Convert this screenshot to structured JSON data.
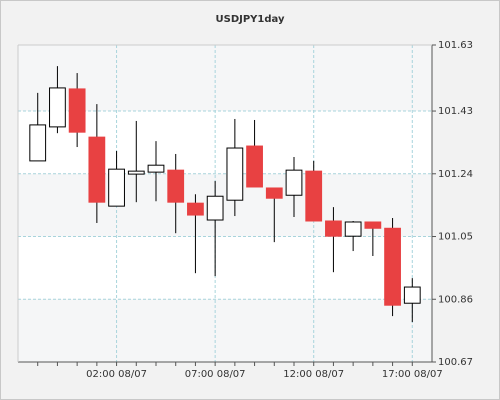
{
  "chart_data": {
    "type": "candlestick",
    "title": "USDJPY1day",
    "categories": [
      null,
      null,
      null,
      null,
      "02:00 08/07",
      null,
      null,
      null,
      null,
      "07:00 08/07",
      null,
      null,
      null,
      null,
      "12:00 08/07",
      null,
      null,
      null,
      null,
      "17:00 08/07"
    ],
    "open": [
      101.279,
      101.382,
      101.497,
      101.351,
      101.142,
      101.239,
      101.245,
      101.251,
      101.151,
      101.1,
      101.16,
      101.324,
      101.197,
      101.175,
      101.248,
      101.097,
      101.051,
      101.094,
      101.075,
      100.848
    ],
    "high": [
      101.485,
      101.566,
      101.545,
      101.451,
      101.309,
      101.4,
      101.339,
      101.3,
      101.178,
      101.218,
      101.406,
      101.403,
      101.197,
      101.291,
      101.279,
      101.139,
      101.097,
      101.094,
      101.106,
      100.924
    ],
    "low": [
      101.279,
      101.363,
      101.321,
      101.091,
      101.142,
      101.154,
      101.157,
      101.06,
      100.939,
      100.93,
      101.112,
      101.2,
      101.033,
      101.109,
      101.097,
      100.942,
      101.006,
      100.991,
      100.809,
      100.791
    ],
    "close": [
      101.388,
      101.5,
      101.366,
      101.154,
      101.254,
      101.248,
      101.266,
      101.154,
      101.115,
      101.172,
      101.318,
      101.2,
      101.166,
      101.251,
      101.097,
      101.051,
      101.094,
      101.075,
      100.842,
      100.897
    ],
    "up_color": "#ffffff",
    "down_color": "#e84142",
    "ylim": [
      100.67,
      101.63
    ],
    "yticks": [
      100.67,
      100.86,
      101.05,
      101.24,
      101.43,
      101.63
    ],
    "grid": true
  }
}
